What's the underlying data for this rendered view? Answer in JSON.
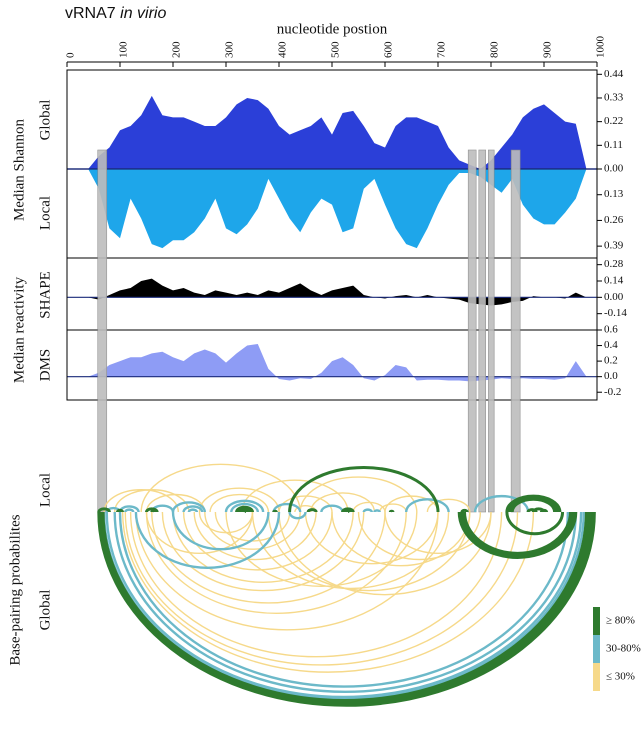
{
  "chart_data": [
    {
      "type": "area",
      "title": "vRNA7",
      "title_italic": "in virio",
      "xlabel": "nucleotide postion",
      "ylabel_shannon": "Median Shannon",
      "ylabel_reactivity": "Median reactivity",
      "xlim": [
        0,
        1000
      ],
      "xticks": [
        0,
        100,
        200,
        300,
        400,
        500,
        600,
        700,
        800,
        900,
        1000
      ],
      "x": [
        40,
        60,
        80,
        100,
        120,
        140,
        160,
        180,
        200,
        220,
        240,
        260,
        280,
        300,
        320,
        340,
        360,
        380,
        400,
        420,
        440,
        460,
        480,
        500,
        520,
        540,
        560,
        580,
        600,
        620,
        640,
        660,
        680,
        700,
        720,
        740,
        760,
        780,
        800,
        820,
        840,
        860,
        880,
        900,
        920,
        940,
        960,
        980
      ],
      "series": [
        {
          "name": "Global",
          "color": "#2b3fd8",
          "ylim": [
            0,
            0.46
          ],
          "yticks": [
            0.44,
            0.33,
            0.22,
            0.11,
            {
              "value": 0,
              "label": "0.00"
            }
          ],
          "values": [
            0,
            0.06,
            0.1,
            0.18,
            0.2,
            0.25,
            0.34,
            0.25,
            0.24,
            0.24,
            0.22,
            0.2,
            0.2,
            0.24,
            0.3,
            0.33,
            0.32,
            0.28,
            0.2,
            0.16,
            0.18,
            0.2,
            0.24,
            0.16,
            0.26,
            0.27,
            0.2,
            0.12,
            0.1,
            0.2,
            0.24,
            0.24,
            0.22,
            0.2,
            0.1,
            0.04,
            0.02,
            0,
            0.04,
            0.1,
            0.16,
            0.24,
            0.28,
            0.3,
            0.26,
            0.22,
            0.21,
            0
          ]
        },
        {
          "name": "Local",
          "color": "#1ea6ea",
          "ylim": [
            0,
            0.45
          ],
          "yticks": [
            0.13,
            0.26,
            0.39
          ],
          "values": [
            0,
            0.1,
            0.3,
            0.35,
            0.15,
            0.25,
            0.38,
            0.4,
            0.36,
            0.36,
            0.32,
            0.25,
            0.15,
            0.3,
            0.33,
            0.28,
            0.2,
            0.05,
            0.15,
            0.25,
            0.32,
            0.22,
            0.15,
            0.18,
            0.32,
            0.3,
            0.1,
            0.05,
            0.18,
            0.3,
            0.38,
            0.4,
            0.3,
            0.18,
            0.08,
            0.02,
            0.02,
            0.04,
            0.08,
            0.12,
            0.05,
            0.18,
            0.25,
            0.28,
            0.28,
            0.22,
            0.15,
            0
          ]
        },
        {
          "name": "SHAPE",
          "color": "#000000",
          "ylim": [
            -0.28,
            0.32
          ],
          "yticks": [
            0.28,
            0.14,
            {
              "value": 0,
              "label": "0.00"
            },
            -0.14
          ],
          "values": [
            0,
            -0.02,
            0.02,
            0.06,
            0.08,
            0.14,
            0.16,
            0.1,
            0.06,
            0.08,
            0.04,
            0.02,
            0.06,
            0.04,
            0.02,
            0.04,
            0.02,
            0.06,
            0.04,
            0.08,
            0.12,
            0.06,
            0.02,
            0.06,
            0.08,
            0.1,
            0.02,
            0,
            -0.01,
            0.01,
            0.02,
            0,
            0.02,
            0,
            -0.01,
            -0.02,
            -0.05,
            -0.06,
            -0.07,
            -0.06,
            -0.04,
            -0.03,
            0.01,
            0,
            0,
            -0.01,
            0.04,
            0
          ]
        },
        {
          "name": "DMS",
          "color": "#8e9cf5",
          "ylim": [
            -0.3,
            0.6
          ],
          "yticks": [
            0.6,
            0.4,
            0.2,
            {
              "value": 0,
              "label": "0.0"
            },
            -0.2
          ],
          "values": [
            0,
            0.05,
            0.15,
            0.2,
            0.25,
            0.25,
            0.3,
            0.32,
            0.25,
            0.2,
            0.3,
            0.35,
            0.3,
            0.18,
            0.3,
            0.4,
            0.42,
            0.1,
            -0.03,
            -0.05,
            -0.02,
            -0.03,
            0.05,
            0.2,
            0.25,
            0.15,
            -0.02,
            -0.05,
            0.02,
            0.15,
            0.12,
            -0.05,
            -0.04,
            -0.04,
            -0.05,
            -0.05,
            -0.06,
            -0.05,
            -0.04,
            -0.02,
            -0.03,
            -0.02,
            -0.03,
            -0.03,
            -0.04,
            -0.02,
            0.2,
            0
          ]
        }
      ],
      "highlight_regions": [
        [
          58,
          75
        ],
        [
          757,
          772
        ],
        [
          777,
          790
        ],
        [
          795,
          806
        ],
        [
          838,
          855
        ]
      ],
      "highlight_color": "#bdbdbd"
    },
    {
      "type": "arc",
      "ylabel": "Base-pairing probabilites",
      "classes": [
        {
          "label": "≥ 80%",
          "color": "#2e7a2e"
        },
        {
          "label": "30-80%",
          "color": "#6cb9c9"
        },
        {
          "label": "≤ 30%",
          "color": "#f6d98a"
        }
      ],
      "tracks": [
        {
          "name": "Local",
          "classes": [
            [
              [
                60,
                80
              ],
              [
                95,
                105
              ],
              [
                150,
                170
              ],
              [
                160,
                165
              ],
              [
                320,
                350
              ],
              [
                325,
                345
              ],
              [
                330,
                340
              ],
              [
                335,
                338
              ],
              [
                390,
                395
              ],
              [
                520,
                540
              ],
              [
                525,
                535
              ],
              [
                530,
                533
              ],
              [
                420,
                700
              ],
              [
                455,
                470
              ],
              [
                610,
                615
              ],
              [
                745,
                755
              ],
              [
                830,
                930
              ],
              [
                835,
                925
              ],
              [
                840,
                920
              ],
              [
                870,
                885
              ],
              [
                880,
                900
              ],
              [
                895,
                905
              ]
            ],
            [
              [
                75,
                100
              ],
              [
                110,
                125
              ],
              [
                160,
                200
              ],
              [
                200,
                260
              ],
              [
                220,
                255
              ],
              [
                230,
                245
              ],
              [
                300,
                370
              ],
              [
                310,
                360
              ],
              [
                390,
                440
              ],
              [
                480,
                520
              ],
              [
                560,
                575
              ],
              [
                580,
                590
              ],
              [
                640,
                720
              ],
              [
                770,
                870
              ],
              [
                100,
                135
              ]
            ],
            [
              [
                70,
                210
              ],
              [
                90,
                230
              ],
              [
                140,
                440
              ],
              [
                250,
                400
              ],
              [
                270,
                380
              ],
              [
                330,
                530
              ],
              [
                400,
                500
              ],
              [
                430,
                470
              ],
              [
                440,
                660
              ],
              [
                460,
                580
              ],
              [
                540,
                600
              ],
              [
                590,
                640
              ],
              [
                600,
                700
              ],
              [
                680,
                760
              ],
              [
                150,
                260
              ]
            ]
          ]
        },
        {
          "name": "Global",
          "classes": [
            [
              [
                60,
                995
              ],
              [
                62,
                990
              ],
              [
                65,
                985
              ],
              [
                68,
                980
              ],
              [
                740,
                960
              ],
              [
                745,
                955
              ],
              [
                750,
                950
              ],
              [
                830,
                935
              ]
            ],
            [
              [
                70,
                975
              ],
              [
                75,
                970
              ],
              [
                90,
                960
              ],
              [
                100,
                945
              ],
              [
                130,
                400
              ],
              [
                200,
                380
              ],
              [
                420,
                450
              ]
            ],
            [
              [
                105,
                880
              ],
              [
                110,
                850
              ],
              [
                120,
                820
              ],
              [
                130,
                700
              ],
              [
                150,
                640
              ],
              [
                160,
                600
              ],
              [
                180,
                560
              ],
              [
                200,
                540
              ],
              [
                220,
                500
              ],
              [
                240,
                470
              ],
              [
                260,
                440
              ],
              [
                280,
                420
              ],
              [
                300,
                660
              ],
              [
                350,
                720
              ],
              [
                380,
                760
              ],
              [
                400,
                800
              ],
              [
                450,
                700
              ],
              [
                500,
                760
              ],
              [
                550,
                780
              ],
              [
                600,
                800
              ],
              [
                150,
                350
              ],
              [
                250,
                350
              ]
            ]
          ]
        }
      ]
    }
  ]
}
